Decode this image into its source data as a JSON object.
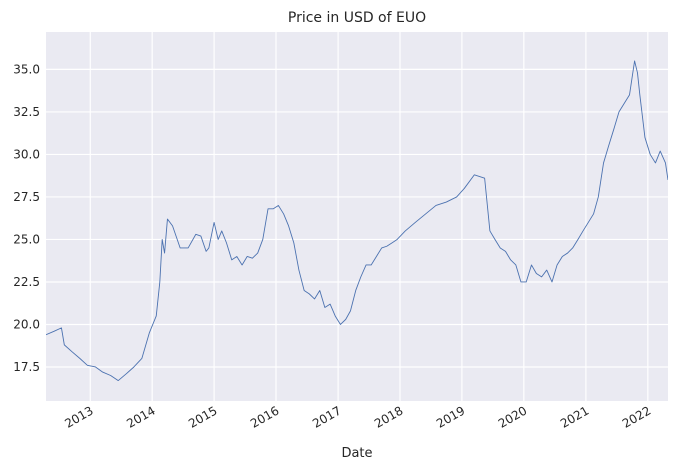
{
  "chart_data": {
    "type": "line",
    "title": "Price in USD of EUO",
    "xlabel": "Date",
    "ylabel": "",
    "xlim": [
      "2012-04-15",
      "2022-04-30"
    ],
    "ylim": [
      15.5,
      37.2
    ],
    "grid": true,
    "legend": "none",
    "colors": {
      "background": "#eaeaf2",
      "grid": "#ffffff",
      "line": "#4c72b0",
      "text": "#262626"
    },
    "x_ticks": [
      {
        "date": "2013-01-01",
        "label": "2013"
      },
      {
        "date": "2014-01-01",
        "label": "2014"
      },
      {
        "date": "2015-01-01",
        "label": "2015"
      },
      {
        "date": "2016-01-01",
        "label": "2016"
      },
      {
        "date": "2017-01-01",
        "label": "2017"
      },
      {
        "date": "2018-01-01",
        "label": "2018"
      },
      {
        "date": "2019-01-01",
        "label": "2019"
      },
      {
        "date": "2020-01-01",
        "label": "2020"
      },
      {
        "date": "2021-01-01",
        "label": "2021"
      },
      {
        "date": "2022-01-01",
        "label": "2022"
      }
    ],
    "y_ticks": [
      {
        "value": 17.5,
        "label": "17.5"
      },
      {
        "value": 20.0,
        "label": "20.0"
      },
      {
        "value": 22.5,
        "label": "22.5"
      },
      {
        "value": 25.0,
        "label": "25.0"
      },
      {
        "value": 27.5,
        "label": "27.5"
      },
      {
        "value": 30.0,
        "label": "30.0"
      },
      {
        "value": 32.5,
        "label": "32.5"
      },
      {
        "value": 35.0,
        "label": "35.0"
      }
    ],
    "series": [
      {
        "x": [
          "2012-04-15",
          "2012-06-01",
          "2012-07-15",
          "2012-08-01",
          "2012-09-15",
          "2012-11-01",
          "2012-12-15",
          "2013-02-01",
          "2013-03-15",
          "2013-05-01",
          "2013-06-15",
          "2013-08-01",
          "2013-09-15",
          "2013-11-01",
          "2013-12-15",
          "2014-01-25",
          "2014-02-15",
          "2014-03-01",
          "2014-03-15",
          "2014-04-01",
          "2014-05-01",
          "2014-06-15",
          "2014-08-01",
          "2014-09-15",
          "2014-10-15",
          "2014-11-15",
          "2014-12-01",
          "2015-01-01",
          "2015-01-25",
          "2015-02-15",
          "2015-03-15",
          "2015-04-15",
          "2015-05-15",
          "2015-06-15",
          "2015-07-15",
          "2015-08-15",
          "2015-09-15",
          "2015-10-15",
          "2015-11-15",
          "2015-12-15",
          "2016-01-15",
          "2016-02-15",
          "2016-03-15",
          "2016-04-15",
          "2016-05-15",
          "2016-06-15",
          "2016-07-15",
          "2016-08-15",
          "2016-09-15",
          "2016-10-15",
          "2016-11-15",
          "2016-12-15",
          "2017-01-15",
          "2017-02-15",
          "2017-03-15",
          "2017-04-15",
          "2017-05-15",
          "2017-06-15",
          "2017-07-15",
          "2017-08-15",
          "2017-09-15",
          "2017-10-15",
          "2017-11-15",
          "2017-12-15",
          "2018-02-01",
          "2018-04-01",
          "2018-06-01",
          "2018-08-01",
          "2018-10-01",
          "2018-12-01",
          "2019-01-15",
          "2019-03-15",
          "2019-05-15",
          "2019-06-15",
          "2019-07-15",
          "2019-08-15",
          "2019-09-15",
          "2019-10-15",
          "2019-11-15",
          "2019-12-15",
          "2020-01-15",
          "2020-02-15",
          "2020-03-15",
          "2020-04-15",
          "2020-05-15",
          "2020-06-15",
          "2020-07-15",
          "2020-08-15",
          "2020-09-15",
          "2020-10-15",
          "2020-11-15",
          "2020-12-15",
          "2021-01-15",
          "2021-02-15",
          "2021-03-15",
          "2021-04-15",
          "2021-05-15",
          "2021-06-15",
          "2021-07-15",
          "2021-08-15",
          "2021-09-15",
          "2021-10-15",
          "2021-11-01",
          "2021-11-15",
          "2021-12-15",
          "2022-01-15",
          "2022-02-15",
          "2022-03-15",
          "2022-04-15",
          "2022-04-30"
        ],
        "y": [
          19.4,
          19.6,
          19.8,
          18.8,
          18.4,
          18.0,
          17.6,
          17.5,
          17.2,
          17.0,
          16.7,
          17.1,
          17.5,
          18.0,
          19.5,
          20.5,
          22.5,
          25.0,
          24.2,
          26.2,
          25.8,
          24.5,
          24.5,
          25.3,
          25.2,
          24.3,
          24.5,
          26.0,
          25.0,
          25.5,
          24.8,
          23.8,
          24.0,
          23.5,
          24.0,
          23.9,
          24.2,
          25.0,
          26.8,
          26.8,
          27.0,
          26.5,
          25.8,
          24.8,
          23.2,
          22.0,
          21.8,
          21.5,
          22.0,
          21.0,
          21.2,
          20.5,
          20.0,
          20.3,
          20.8,
          22.0,
          22.8,
          23.5,
          23.5,
          24.0,
          24.5,
          24.6,
          24.8,
          25.0,
          25.5,
          26.0,
          26.5,
          27.0,
          27.2,
          27.5,
          28.0,
          28.8,
          28.6,
          25.5,
          25.0,
          24.5,
          24.3,
          23.8,
          23.5,
          22.5,
          22.5,
          23.5,
          23.0,
          22.8,
          23.2,
          22.5,
          23.5,
          24.0,
          24.2,
          24.5,
          25.0,
          25.5,
          26.0,
          26.5,
          27.5,
          29.5,
          30.5,
          31.5,
          32.5,
          33.0,
          33.5,
          35.5,
          34.8,
          33.5,
          31.0,
          30.0,
          29.5,
          30.2,
          29.5,
          28.5
        ]
      }
    ]
  }
}
